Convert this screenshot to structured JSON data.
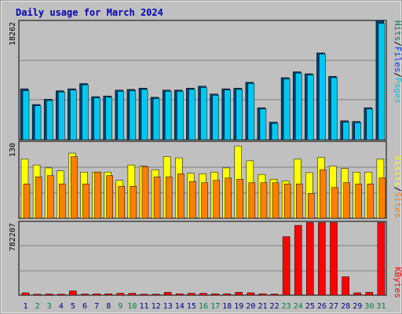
{
  "chart_data": [
    {
      "type": "bar",
      "title": "Daily usage for March 2024",
      "ymax_label": "18262",
      "ylim": [
        0,
        18262
      ],
      "grid": true,
      "categories": [
        "1",
        "2",
        "3",
        "4",
        "5",
        "6",
        "7",
        "8",
        "9",
        "10",
        "11",
        "12",
        "13",
        "14",
        "15",
        "16",
        "17",
        "18",
        "19",
        "20",
        "21",
        "22",
        "23",
        "24",
        "25",
        "26",
        "27",
        "28",
        "29",
        "30",
        "31"
      ],
      "legend": [
        "Hits",
        "Files",
        "Pages"
      ],
      "series": [
        {
          "name": "Hits",
          "color": "#00805c",
          "values": [
            7800,
            5400,
            6200,
            7500,
            7800,
            8600,
            6600,
            6700,
            7600,
            7700,
            7900,
            6500,
            7600,
            7600,
            7900,
            8200,
            7000,
            7800,
            7900,
            8800,
            4900,
            2700,
            9500,
            10400,
            10100,
            13300,
            9700,
            2900,
            2800,
            4900,
            18262
          ]
        },
        {
          "name": "Files",
          "color": "#0040ff",
          "values": [
            7500,
            5200,
            6000,
            7300,
            7600,
            8400,
            6400,
            6500,
            7400,
            7500,
            7700,
            6300,
            7400,
            7400,
            7700,
            8000,
            6800,
            7600,
            7700,
            8600,
            4700,
            2500,
            9300,
            10200,
            9900,
            13100,
            9500,
            2700,
            2600,
            4700,
            17800
          ]
        },
        {
          "name": "Pages",
          "color": "#00c8f0",
          "values": [
            7500,
            5200,
            6000,
            7300,
            7600,
            8400,
            6400,
            6500,
            7400,
            7500,
            7700,
            6300,
            7400,
            7400,
            7700,
            8000,
            6800,
            7600,
            7700,
            8600,
            4700,
            2500,
            9300,
            10200,
            9900,
            13100,
            9500,
            2700,
            2600,
            4700,
            17800
          ]
        }
      ]
    },
    {
      "type": "bar",
      "ymax_label": "130",
      "ylim": [
        0,
        130
      ],
      "grid": true,
      "categories": [
        "1",
        "2",
        "3",
        "4",
        "5",
        "6",
        "7",
        "8",
        "9",
        "10",
        "11",
        "12",
        "13",
        "14",
        "15",
        "16",
        "17",
        "18",
        "19",
        "20",
        "21",
        "22",
        "23",
        "24",
        "25",
        "26",
        "27",
        "28",
        "29",
        "30",
        "31"
      ],
      "legend": [
        "Visits",
        "Sites"
      ],
      "series": [
        {
          "name": "Visits",
          "color": "#ffff00",
          "values": [
            100,
            90,
            85,
            80,
            110,
            78,
            78,
            78,
            64,
            90,
            88,
            82,
            104,
            102,
            76,
            75,
            78,
            85,
            122,
            97,
            74,
            66,
            63,
            100,
            77,
            103,
            88,
            84,
            78,
            78,
            100
          ]
        },
        {
          "name": "Sites",
          "color": "#ff8000",
          "values": [
            58,
            70,
            72,
            58,
            104,
            58,
            78,
            72,
            54,
            54,
            87,
            70,
            70,
            75,
            62,
            60,
            64,
            68,
            66,
            60,
            60,
            60,
            58,
            58,
            42,
            82,
            52,
            60,
            58,
            58,
            68
          ]
        }
      ]
    },
    {
      "type": "bar",
      "ymax_label": "782207",
      "ylim": [
        0,
        782207
      ],
      "grid": true,
      "categories": [
        "1",
        "2",
        "3",
        "4",
        "5",
        "6",
        "7",
        "8",
        "9",
        "10",
        "11",
        "12",
        "13",
        "14",
        "15",
        "16",
        "17",
        "18",
        "19",
        "20",
        "21",
        "22",
        "23",
        "24",
        "25",
        "26",
        "27",
        "28",
        "29",
        "30",
        "31"
      ],
      "legend": [
        "KBytes"
      ],
      "series": [
        {
          "name": "KBytes",
          "color": "#ff0000",
          "values": [
            25000,
            10000,
            12000,
            10000,
            45000,
            12000,
            15000,
            15000,
            20000,
            20000,
            10000,
            10000,
            30000,
            15000,
            20000,
            20000,
            15000,
            15000,
            30000,
            25000,
            15000,
            12000,
            620000,
            740000,
            770000,
            770000,
            770000,
            195000,
            25000,
            30000,
            770000
          ]
        }
      ]
    }
  ],
  "xaxis": {
    "weekend_color": "#008040",
    "weekday_color": "#000080",
    "weekend_days": [
      "2",
      "3",
      "9",
      "10",
      "16",
      "17",
      "23",
      "24",
      "30",
      "31"
    ]
  }
}
